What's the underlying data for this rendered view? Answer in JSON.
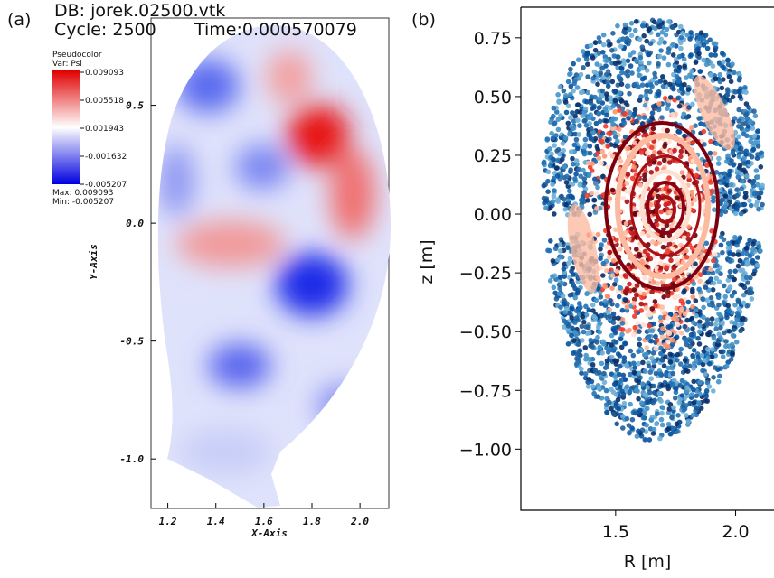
{
  "panel_a": {
    "label": "(a)",
    "db": "DB: jorek.02500.vtk",
    "cycle": "Cycle: 2500",
    "time": "Time:0.000570079",
    "legend": {
      "title": "Pseudocolor",
      "var": "Var: Psi",
      "ticks": [
        "0.009093",
        "0.005518",
        "0.001943",
        "-0.001632",
        "-0.005207"
      ],
      "max": "Max: 0.009093",
      "min": "Min: -0.005207"
    },
    "xlabel": "X-Axis",
    "ylabel": "Y-Axis",
    "xlim": [
      1.13,
      2.12
    ],
    "ylim": [
      -1.21,
      0.87
    ],
    "xticks": [
      1.2,
      1.4,
      1.6,
      1.8,
      {
        "value": 2,
        "label": "2.0"
      }
    ],
    "yticks": [
      0.5,
      {
        "value": 0,
        "label": "0.0"
      },
      -0.5,
      {
        "value": -1,
        "label": "-1.0"
      }
    ]
  },
  "panel_b": {
    "label": "(b)",
    "xlabel": "R [m]",
    "ylabel": "z [m]",
    "xlim": [
      1.105,
      2.16
    ],
    "ylim": [
      -1.26,
      0.88
    ],
    "xticks": [
      1.5,
      {
        "value": 2,
        "label": "2.0"
      }
    ],
    "yticks": [
      0.75,
      {
        "value": 0.5,
        "label": "0.50"
      },
      0.25,
      {
        "value": 0,
        "label": "0.00"
      },
      {
        "value": -0.25,
        "label": "−0.25"
      },
      {
        "value": -0.5,
        "label": "−0.50"
      },
      {
        "value": -0.75,
        "label": "−0.75"
      },
      {
        "value": -1,
        "label": "−1.00"
      }
    ]
  }
}
